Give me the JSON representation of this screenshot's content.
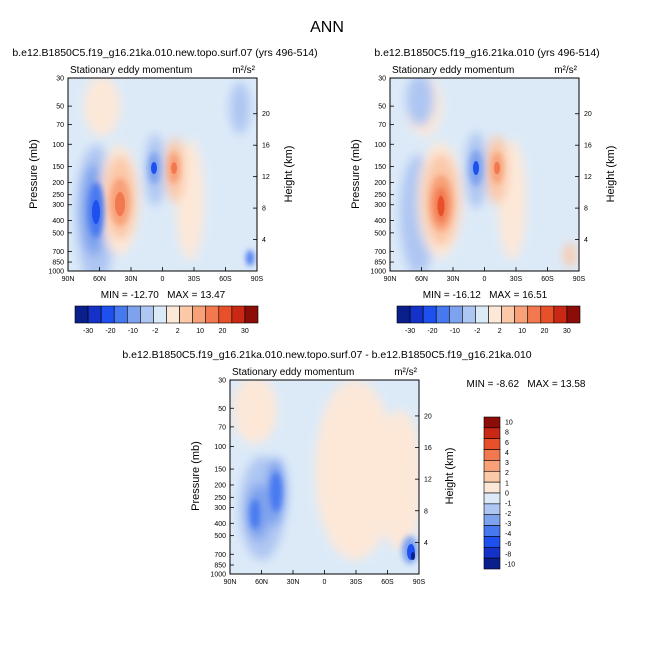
{
  "figure_title": "ANN",
  "colors": {
    "full_scale": [
      "#0a1e8c",
      "#1432c8",
      "#1e50f0",
      "#4678f0",
      "#7ea2ee",
      "#aec6f2",
      "#dceaf8",
      "#fde8d8",
      "#fbc8a8",
      "#f8a078",
      "#f27850",
      "#e8502a",
      "#c82814",
      "#8c0c08"
    ],
    "diff_scale": [
      "#0a1e8c",
      "#1432c8",
      "#1e50f0",
      "#4678f0",
      "#7ea2ee",
      "#aec6f2",
      "#dceaf8",
      "#fde8d8",
      "#fbc8a8",
      "#f8a078",
      "#f27850",
      "#e8502a",
      "#c82814",
      "#8c0c08"
    ]
  },
  "chart_data": [
    {
      "type": "heatmap",
      "title": "b.e12.B1850C5.f19_g16.21ka.010.new.topo.surf.07 (yrs 496-514)",
      "subtitle": "Stationary eddy momentum",
      "units": "m²/s²",
      "xlabel": "",
      "ylabel": "Pressure (mb)",
      "y2label": "Height (km)",
      "x_ticks": [
        "90N",
        "60N",
        "30N",
        "0",
        "30S",
        "60S",
        "90S"
      ],
      "y_ticks": [
        "30",
        "50",
        "70",
        "100",
        "150",
        "200",
        "250",
        "300",
        "400",
        "500",
        "700",
        "850",
        "1000"
      ],
      "y2_ticks": [
        "20",
        "16",
        "12",
        "8",
        "4"
      ],
      "x_range": [
        "90N",
        "90S"
      ],
      "y_range_mb": [
        1000,
        30
      ],
      "y_scale": "log",
      "min": -12.7,
      "max": 13.47,
      "minmax_text": "MIN = -12.70   MAX = 13.47",
      "colorbar_labels": [
        "-30",
        "-20",
        "-10",
        "-2",
        "2",
        "10",
        "20",
        "30"
      ],
      "extremes": [
        {
          "lat": 66,
          "p_mb": 350,
          "value": -12.7
        },
        {
          "lat": 52,
          "p_mb": 300,
          "value": 13.47
        },
        {
          "lat": 8,
          "p_mb": 160,
          "value": -9
        },
        {
          "lat": -10,
          "p_mb": 160,
          "value": 8
        }
      ]
    },
    {
      "type": "heatmap",
      "title": "b.e12.B1850C5.f19_g16.21ka.010 (yrs 496-514)",
      "subtitle": "Stationary eddy momentum",
      "units": "m²/s²",
      "xlabel": "",
      "ylabel": "Pressure (mb)",
      "y2label": "Height (km)",
      "x_ticks": [
        "90N",
        "60N",
        "30N",
        "0",
        "30S",
        "60S",
        "90S"
      ],
      "y_ticks": [
        "30",
        "50",
        "70",
        "100",
        "150",
        "200",
        "250",
        "300",
        "400",
        "500",
        "700",
        "850",
        "1000"
      ],
      "y2_ticks": [
        "20",
        "16",
        "12",
        "8",
        "4"
      ],
      "x_range": [
        "90N",
        "90S"
      ],
      "y_range_mb": [
        1000,
        30
      ],
      "y_scale": "log",
      "min": -16.12,
      "max": 16.51,
      "minmax_text": "MIN = -16.12   MAX = 16.51",
      "colorbar_labels": [
        "-30",
        "-20",
        "-10",
        "-2",
        "2",
        "10",
        "20",
        "30"
      ],
      "extremes": [
        {
          "lat": 66,
          "p_mb": 300,
          "value": -8
        },
        {
          "lat": 50,
          "p_mb": 300,
          "value": 16.51
        },
        {
          "lat": 10,
          "p_mb": 160,
          "value": -16.12
        },
        {
          "lat": -10,
          "p_mb": 160,
          "value": 10
        }
      ]
    },
    {
      "type": "heatmap",
      "title": "b.e12.B1850C5.f19_g16.21ka.010.new.topo.surf.07 - b.e12.B1850C5.f19_g16.21ka.010",
      "subtitle": "Stationary eddy momentum",
      "units": "m²/s²",
      "xlabel": "",
      "ylabel": "Pressure (mb)",
      "y2label": "Height (km)",
      "x_ticks": [
        "90N",
        "60N",
        "30N",
        "0",
        "30S",
        "60S",
        "90S"
      ],
      "y_ticks": [
        "30",
        "50",
        "70",
        "100",
        "150",
        "200",
        "250",
        "300",
        "400",
        "500",
        "700",
        "850",
        "1000"
      ],
      "y2_ticks": [
        "20",
        "16",
        "12",
        "8",
        "4"
      ],
      "x_range": [
        "90N",
        "90S"
      ],
      "y_range_mb": [
        1000,
        30
      ],
      "y_scale": "log",
      "min": -8.62,
      "max": 13.58,
      "minmax_text": "MIN = -8.62   MAX = 13.58",
      "colorbar_labels": [
        "10",
        "8",
        "6",
        "4",
        "3",
        "2",
        "1",
        "0",
        "-1",
        "-2",
        "-3",
        "-4",
        "-6",
        "-8",
        "-10"
      ],
      "extremes": [
        {
          "lat": 66,
          "p_mb": 370,
          "value": -6
        },
        {
          "lat": 48,
          "p_mb": 280,
          "value": -4
        },
        {
          "lat": -78,
          "p_mb": 750,
          "value": -8.62
        }
      ]
    }
  ]
}
